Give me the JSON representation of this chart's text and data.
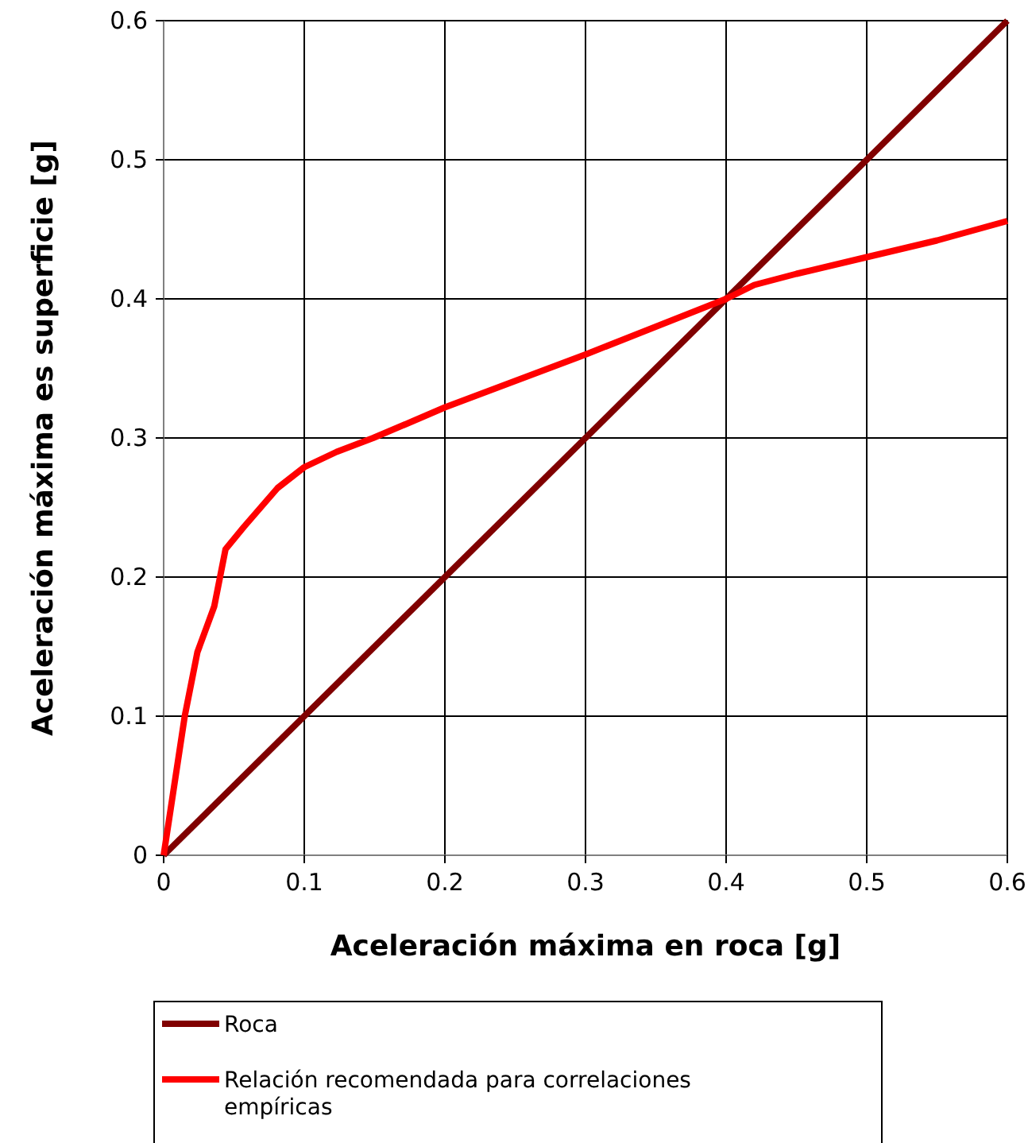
{
  "chart_data": {
    "type": "line",
    "xlabel": "Aceleración máxima en roca [g]",
    "ylabel": "Aceleración máxima es superficie [g]",
    "xlim": [
      0,
      0.6
    ],
    "ylim": [
      0,
      0.6
    ],
    "xticks": [
      0,
      0.1,
      0.2,
      0.3,
      0.4,
      0.5,
      0.6
    ],
    "yticks": [
      0,
      0.1,
      0.2,
      0.3,
      0.4,
      0.5,
      0.6
    ],
    "grid": true,
    "legend": "bottom",
    "marker": "none",
    "line_style": "solid",
    "series": [
      {
        "name": "Roca",
        "color": "#800000",
        "x": [
          0,
          0.6
        ],
        "values": [
          0,
          0.6
        ]
      },
      {
        "name": "Relación recomendada para correlaciones empíricas",
        "color": "#ff0000",
        "x": [
          0,
          0.015,
          0.024,
          0.036,
          0.044,
          0.057,
          0.081,
          0.1,
          0.123,
          0.149,
          0.177,
          0.2,
          0.25,
          0.3,
          0.35,
          0.4,
          0.42,
          0.45,
          0.5,
          0.55,
          0.6
        ],
        "values": [
          0,
          0.1,
          0.146,
          0.179,
          0.22,
          0.236,
          0.264,
          0.279,
          0.29,
          0.3,
          0.312,
          0.322,
          0.341,
          0.36,
          0.38,
          0.4,
          0.41,
          0.418,
          0.43,
          0.442,
          0.456
        ]
      }
    ]
  }
}
